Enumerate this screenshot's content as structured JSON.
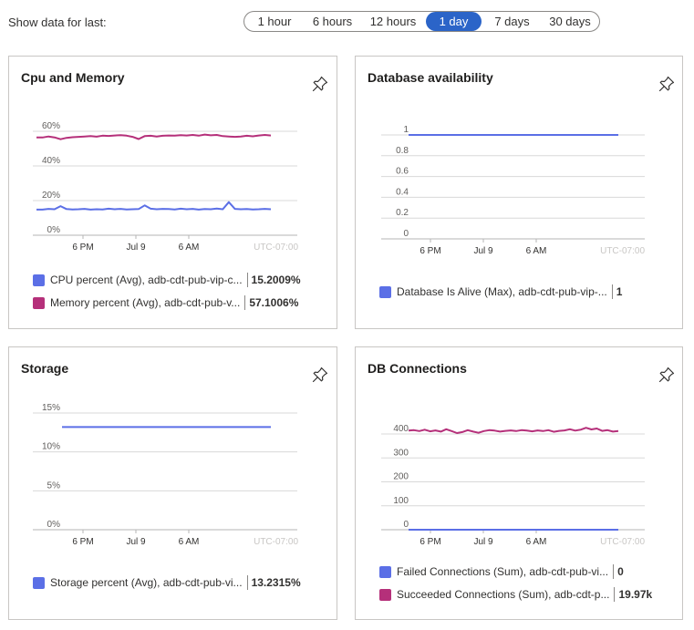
{
  "header": {
    "label": "Show data for last:",
    "options": [
      "1 hour",
      "6 hours",
      "12 hours",
      "1 day",
      "7 days",
      "30 days"
    ],
    "selected": "1 day"
  },
  "colors": {
    "blue": "#5b6fe6",
    "magenta": "#b5307a",
    "active_seg": "#2b64c8",
    "grid": "#d8d8d8",
    "axis": "#b5b5b5"
  },
  "x_axis": {
    "ticks": [
      "6 PM",
      "Jul 9",
      "6 AM"
    ],
    "timezone": "UTC-07:00"
  },
  "cards": {
    "cpu": {
      "title": "Cpu and Memory",
      "pin_icon": "pin-icon",
      "legend": [
        {
          "name": "CPU percent (Avg), adb-cdt-pub-vip-c...",
          "value": "15.2009%",
          "color": "#5b6fe6"
        },
        {
          "name": "Memory percent (Avg), adb-cdt-pub-v...",
          "value": "57.1006%",
          "color": "#b5307a"
        }
      ]
    },
    "db": {
      "title": "Database availability",
      "pin_icon": "pin-icon",
      "legend": [
        {
          "name": "Database Is Alive (Max), adb-cdt-pub-vip-...",
          "value": "1",
          "color": "#5b6fe6"
        }
      ]
    },
    "storage": {
      "title": "Storage",
      "pin_icon": "pin-icon",
      "legend": [
        {
          "name": "Storage percent (Avg), adb-cdt-pub-vi...",
          "value": "13.2315%",
          "color": "#5b6fe6"
        }
      ]
    },
    "conn": {
      "title": "DB Connections",
      "pin_icon": "pin-icon",
      "legend": [
        {
          "name": "Failed Connections (Sum), adb-cdt-pub-vi...",
          "value": "0",
          "color": "#5b6fe6"
        },
        {
          "name": "Succeeded Connections (Sum), adb-cdt-p...",
          "value": "19.97k",
          "color": "#b5307a"
        }
      ]
    }
  },
  "chart_data": [
    {
      "id": "cpu",
      "type": "line",
      "title": "Cpu and Memory",
      "y_ticks": [
        "0%",
        "20%",
        "40%",
        "60%"
      ],
      "ylim": [
        0,
        60
      ],
      "grid": true,
      "series": [
        {
          "name": "CPU percent (Avg), adb-cdt-pub-vip-c...",
          "color": "#5b6fe6",
          "values": [
            14.8,
            14.8,
            15.2,
            15.0,
            16.8,
            15.1,
            14.9,
            15.0,
            15.2,
            14.8,
            15.0,
            14.9,
            15.3,
            15.0,
            15.2,
            14.9,
            15.0,
            15.1,
            17.2,
            15.3,
            15.0,
            15.2,
            15.1,
            14.9,
            15.3,
            15.0,
            15.2,
            14.8,
            15.1,
            15.0,
            15.4,
            15.0,
            19.1,
            15.2,
            15.0,
            15.1,
            14.9,
            15.0,
            15.2,
            15.0
          ]
        },
        {
          "name": "Memory percent (Avg), adb-cdt-pub-v...",
          "color": "#b5307a",
          "values": [
            56.5,
            56.4,
            57.0,
            56.5,
            55.4,
            56.2,
            56.6,
            56.8,
            57.0,
            57.2,
            56.9,
            57.5,
            57.3,
            57.6,
            57.8,
            57.5,
            56.8,
            55.5,
            57.2,
            57.4,
            57.0,
            57.4,
            57.6,
            57.5,
            57.8,
            57.6,
            57.9,
            57.5,
            58.1,
            57.7,
            57.9,
            57.2,
            57.0,
            56.8,
            57.0,
            57.4,
            57.1,
            57.6,
            57.9,
            57.6
          ]
        }
      ]
    },
    {
      "id": "db",
      "type": "line",
      "title": "Database availability",
      "y_ticks": [
        "0",
        "0.2",
        "0.4",
        "0.6",
        "0.8",
        "1"
      ],
      "ylim": [
        0,
        1
      ],
      "grid": true,
      "series": [
        {
          "name": "Database Is Alive (Max), adb-cdt-pub-vip-...",
          "color": "#5b6fe6",
          "values": [
            1,
            1,
            1,
            1,
            1,
            1,
            1,
            1,
            1,
            1
          ]
        }
      ]
    },
    {
      "id": "storage",
      "type": "line",
      "title": "Storage",
      "y_ticks": [
        "0%",
        "5%",
        "10%",
        "15%"
      ],
      "ylim": [
        0,
        15
      ],
      "grid": true,
      "series": [
        {
          "name": "Storage percent (Avg), adb-cdt-pub-vi...",
          "color": "#5b6fe6",
          "values": [
            13.2,
            13.2,
            13.2,
            13.2,
            13.2,
            13.2,
            13.2,
            13.2,
            13.2,
            13.2
          ]
        }
      ]
    },
    {
      "id": "conn",
      "type": "line",
      "title": "DB Connections",
      "y_ticks": [
        "0",
        "100",
        "200",
        "300",
        "400"
      ],
      "ylim": [
        0,
        400
      ],
      "grid": true,
      "series": [
        {
          "name": "Failed Connections (Sum), adb-cdt-pub-vi...",
          "color": "#5b6fe6",
          "values": [
            0,
            0,
            0,
            0,
            0,
            0,
            0,
            0,
            0,
            0
          ]
        },
        {
          "name": "Succeeded Connections (Sum), adb-cdt-p...",
          "color": "#b5307a",
          "values": [
            414,
            416,
            412,
            418,
            411,
            415,
            410,
            420,
            412,
            404,
            408,
            416,
            410,
            405,
            412,
            416,
            414,
            410,
            413,
            415,
            412,
            416,
            414,
            411,
            415,
            412,
            416,
            409,
            413,
            415,
            420,
            414,
            418,
            426,
            419,
            423,
            413,
            416,
            410,
            412
          ]
        }
      ]
    }
  ]
}
